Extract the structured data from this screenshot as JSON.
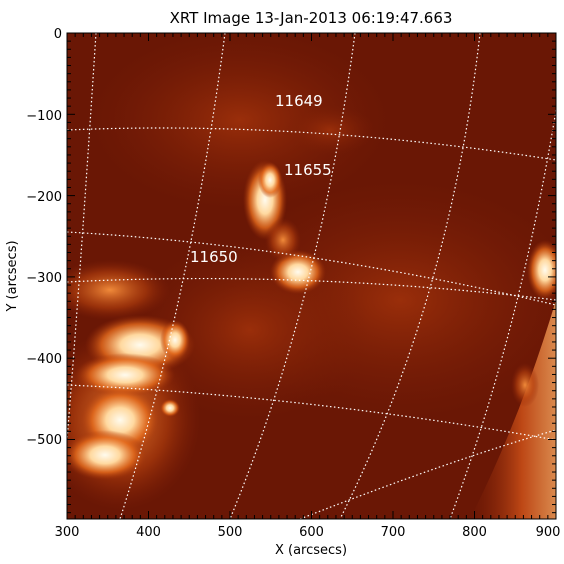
{
  "title": "XRT Image 13-Jan-2013 06:19:47.663",
  "xlabel": "X (arcsecs)",
  "ylabel": "Y (arcsecs)",
  "x_ticks": [
    "300",
    "400",
    "500",
    "600",
    "700",
    "800",
    "900"
  ],
  "y_ticks": [
    "0",
    "−100",
    "−200",
    "−300",
    "−400",
    "−500"
  ],
  "active_regions": [
    {
      "label": "11649"
    },
    {
      "label": "11655"
    },
    {
      "label": "11650"
    }
  ],
  "colors": {
    "background": "#6a1705",
    "bright": "#fff4dc",
    "grid": "#ffffff"
  }
}
